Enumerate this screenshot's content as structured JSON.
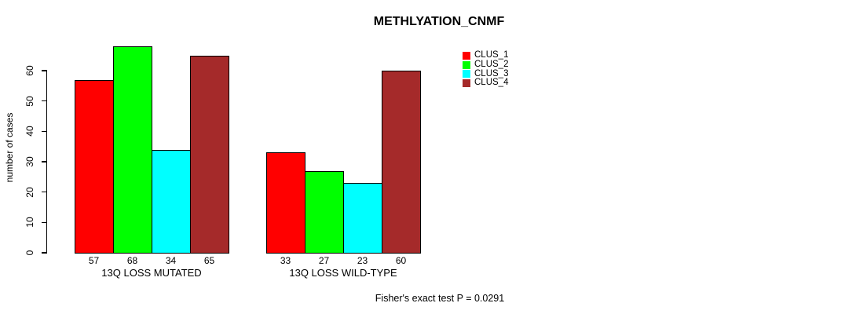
{
  "chart_data": {
    "type": "bar",
    "title": "METHLYATION_CNMF",
    "ylabel": "number of cases",
    "ylim": [
      0,
      60
    ],
    "yticks": [
      0,
      10,
      20,
      30,
      40,
      50,
      60
    ],
    "grid": false,
    "legend_position": "top-right",
    "categories": [
      "13Q LOSS MUTATED",
      "13Q LOSS WILD-TYPE"
    ],
    "series": [
      {
        "name": "CLUS_1",
        "color": "#FF0000",
        "values": [
          57,
          33
        ]
      },
      {
        "name": "CLUS_2",
        "color": "#00FF00",
        "values": [
          68,
          27
        ]
      },
      {
        "name": "CLUS_3",
        "color": "#00FFFF",
        "values": [
          34,
          23
        ]
      },
      {
        "name": "CLUS_4",
        "color": "#A52A2A",
        "values": [
          65,
          60
        ]
      }
    ],
    "bar_value_labels": [
      [
        57,
        68,
        34,
        65
      ],
      [
        33,
        27,
        23,
        60
      ]
    ],
    "annotation": "Fisher's exact test P = 0.0291"
  }
}
